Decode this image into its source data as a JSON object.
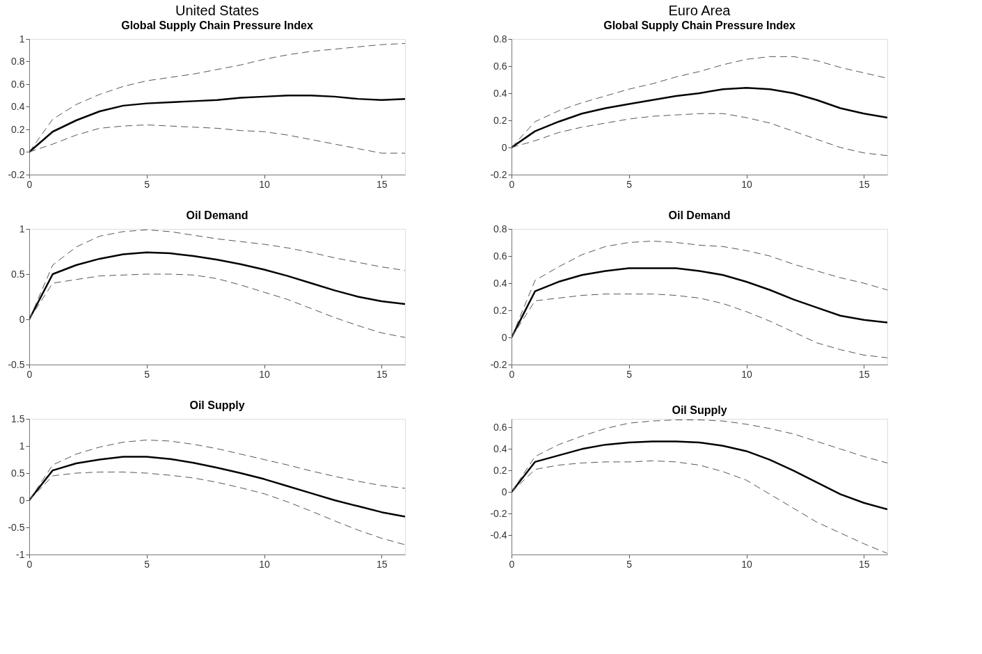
{
  "chart_data": [
    {
      "type": "line",
      "title": "United States",
      "subtitle": "Global Supply Chain Pressure Index",
      "x": [
        0,
        1,
        2,
        3,
        4,
        5,
        6,
        7,
        8,
        9,
        10,
        11,
        12,
        13,
        14,
        15,
        16
      ],
      "xlim": [
        0,
        16
      ],
      "xticks": [
        0,
        5,
        10,
        15
      ],
      "ylim": [
        -0.2,
        1
      ],
      "yticks": [
        -0.2,
        0,
        0.2,
        0.4,
        0.6,
        0.8,
        1
      ],
      "grid": false,
      "legend": false,
      "series": [
        {
          "color": "#000000",
          "line_style": "solid",
          "values": [
            0,
            0.18,
            0.28,
            0.36,
            0.41,
            0.43,
            0.44,
            0.45,
            0.46,
            0.48,
            0.49,
            0.5,
            0.5,
            0.49,
            0.47,
            0.46,
            0.47
          ]
        },
        {
          "color": "#555555",
          "line_style": "dashed",
          "values": [
            0,
            0.29,
            0.42,
            0.51,
            0.58,
            0.63,
            0.66,
            0.69,
            0.73,
            0.77,
            0.82,
            0.86,
            0.89,
            0.91,
            0.93,
            0.95,
            0.96
          ]
        },
        {
          "color": "#555555",
          "line_style": "dashed",
          "values": [
            0,
            0.07,
            0.15,
            0.21,
            0.23,
            0.24,
            0.23,
            0.22,
            0.21,
            0.19,
            0.18,
            0.15,
            0.11,
            0.07,
            0.03,
            -0.01,
            -0.01
          ]
        }
      ]
    },
    {
      "type": "line",
      "title": "Euro Area",
      "subtitle": "Global Supply Chain Pressure Index",
      "x": [
        0,
        1,
        2,
        3,
        4,
        5,
        6,
        7,
        8,
        9,
        10,
        11,
        12,
        13,
        14,
        15,
        16
      ],
      "xlim": [
        0,
        16
      ],
      "xticks": [
        0,
        5,
        10,
        15
      ],
      "ylim": [
        -0.2,
        0.8
      ],
      "yticks": [
        -0.2,
        0,
        0.2,
        0.4,
        0.6,
        0.8
      ],
      "grid": false,
      "legend": false,
      "series": [
        {
          "color": "#000000",
          "line_style": "solid",
          "values": [
            0,
            0.12,
            0.19,
            0.25,
            0.29,
            0.32,
            0.35,
            0.38,
            0.4,
            0.43,
            0.44,
            0.43,
            0.4,
            0.35,
            0.29,
            0.25,
            0.22
          ]
        },
        {
          "color": "#555555",
          "line_style": "dashed",
          "values": [
            0,
            0.19,
            0.27,
            0.33,
            0.38,
            0.43,
            0.47,
            0.52,
            0.56,
            0.61,
            0.65,
            0.67,
            0.67,
            0.64,
            0.59,
            0.55,
            0.51
          ]
        },
        {
          "color": "#555555",
          "line_style": "dashed",
          "values": [
            0,
            0.05,
            0.11,
            0.15,
            0.18,
            0.21,
            0.23,
            0.24,
            0.25,
            0.25,
            0.22,
            0.18,
            0.12,
            0.06,
            0.0,
            -0.04,
            -0.06
          ]
        }
      ]
    },
    {
      "type": "line",
      "title": "Oil Demand",
      "x": [
        0,
        1,
        2,
        3,
        4,
        5,
        6,
        7,
        8,
        9,
        10,
        11,
        12,
        13,
        14,
        15,
        16
      ],
      "xlim": [
        0,
        16
      ],
      "xticks": [
        0,
        5,
        10,
        15
      ],
      "ylim": [
        -0.5,
        1
      ],
      "yticks": [
        -0.5,
        0,
        0.5,
        1
      ],
      "grid": false,
      "legend": false,
      "series": [
        {
          "color": "#000000",
          "line_style": "solid",
          "values": [
            0,
            0.5,
            0.6,
            0.67,
            0.72,
            0.74,
            0.73,
            0.7,
            0.66,
            0.61,
            0.55,
            0.48,
            0.4,
            0.32,
            0.25,
            0.2,
            0.17
          ]
        },
        {
          "color": "#555555",
          "line_style": "dashed",
          "values": [
            0,
            0.6,
            0.8,
            0.92,
            0.97,
            0.99,
            0.97,
            0.93,
            0.89,
            0.86,
            0.83,
            0.79,
            0.74,
            0.68,
            0.63,
            0.58,
            0.54
          ]
        },
        {
          "color": "#555555",
          "line_style": "dashed",
          "values": [
            0,
            0.4,
            0.44,
            0.48,
            0.49,
            0.5,
            0.5,
            0.49,
            0.45,
            0.38,
            0.3,
            0.22,
            0.12,
            0.02,
            -0.07,
            -0.15,
            -0.2
          ]
        }
      ]
    },
    {
      "type": "line",
      "title": "Oil Demand",
      "x": [
        0,
        1,
        2,
        3,
        4,
        5,
        6,
        7,
        8,
        9,
        10,
        11,
        12,
        13,
        14,
        15,
        16
      ],
      "xlim": [
        0,
        16
      ],
      "xticks": [
        0,
        5,
        10,
        15
      ],
      "ylim": [
        -0.2,
        0.8
      ],
      "yticks": [
        -0.2,
        0,
        0.2,
        0.4,
        0.6,
        0.8
      ],
      "grid": false,
      "legend": false,
      "series": [
        {
          "color": "#000000",
          "line_style": "solid",
          "values": [
            0,
            0.34,
            0.41,
            0.46,
            0.49,
            0.51,
            0.51,
            0.51,
            0.49,
            0.46,
            0.41,
            0.35,
            0.28,
            0.22,
            0.16,
            0.13,
            0.11
          ]
        },
        {
          "color": "#555555",
          "line_style": "dashed",
          "values": [
            0,
            0.42,
            0.52,
            0.61,
            0.67,
            0.7,
            0.71,
            0.7,
            0.68,
            0.67,
            0.64,
            0.6,
            0.54,
            0.49,
            0.44,
            0.4,
            0.35
          ]
        },
        {
          "color": "#555555",
          "line_style": "dashed",
          "values": [
            0,
            0.27,
            0.29,
            0.31,
            0.32,
            0.32,
            0.32,
            0.31,
            0.29,
            0.25,
            0.19,
            0.12,
            0.04,
            -0.04,
            -0.09,
            -0.13,
            -0.15
          ]
        }
      ]
    },
    {
      "type": "line",
      "title": "Oil Supply",
      "x": [
        0,
        1,
        2,
        3,
        4,
        5,
        6,
        7,
        8,
        9,
        10,
        11,
        12,
        13,
        14,
        15,
        16
      ],
      "xlim": [
        0,
        16
      ],
      "xticks": [
        0,
        5,
        10,
        15
      ],
      "ylim": [
        -1,
        1.5
      ],
      "yticks": [
        -1,
        -0.5,
        0,
        0.5,
        1,
        1.5
      ],
      "grid": false,
      "legend": false,
      "series": [
        {
          "color": "#000000",
          "line_style": "solid",
          "values": [
            0,
            0.55,
            0.68,
            0.75,
            0.8,
            0.8,
            0.76,
            0.69,
            0.6,
            0.5,
            0.39,
            0.26,
            0.13,
            0.0,
            -0.11,
            -0.22,
            -0.3
          ]
        },
        {
          "color": "#555555",
          "line_style": "dashed",
          "values": [
            0,
            0.65,
            0.85,
            0.98,
            1.07,
            1.11,
            1.09,
            1.03,
            0.95,
            0.85,
            0.75,
            0.65,
            0.54,
            0.44,
            0.35,
            0.27,
            0.22
          ]
        },
        {
          "color": "#555555",
          "line_style": "dashed",
          "values": [
            0,
            0.45,
            0.5,
            0.52,
            0.52,
            0.5,
            0.46,
            0.41,
            0.33,
            0.23,
            0.12,
            -0.03,
            -0.2,
            -0.38,
            -0.55,
            -0.7,
            -0.82
          ]
        }
      ]
    },
    {
      "type": "line",
      "title": "Oil Supply",
      "x": [
        0,
        1,
        2,
        3,
        4,
        5,
        6,
        7,
        8,
        9,
        10,
        11,
        12,
        13,
        14,
        15,
        16
      ],
      "xlim": [
        0,
        16
      ],
      "xticks": [
        0,
        5,
        10,
        15
      ],
      "ylim": [
        -0.58,
        0.68
      ],
      "yticks": [
        -0.4,
        -0.2,
        0,
        0.2,
        0.4,
        0.6
      ],
      "grid": false,
      "legend": false,
      "series": [
        {
          "color": "#000000",
          "line_style": "solid",
          "values": [
            0,
            0.28,
            0.34,
            0.4,
            0.44,
            0.46,
            0.47,
            0.47,
            0.46,
            0.43,
            0.38,
            0.3,
            0.2,
            0.09,
            -0.02,
            -0.1,
            -0.16
          ]
        },
        {
          "color": "#555555",
          "line_style": "dashed",
          "values": [
            0,
            0.33,
            0.44,
            0.52,
            0.59,
            0.64,
            0.66,
            0.67,
            0.67,
            0.66,
            0.63,
            0.59,
            0.54,
            0.47,
            0.4,
            0.33,
            0.27
          ]
        },
        {
          "color": "#555555",
          "line_style": "dashed",
          "values": [
            0,
            0.21,
            0.25,
            0.27,
            0.28,
            0.28,
            0.29,
            0.28,
            0.25,
            0.19,
            0.11,
            -0.02,
            -0.15,
            -0.28,
            -0.38,
            -0.48,
            -0.57
          ]
        }
      ]
    }
  ]
}
